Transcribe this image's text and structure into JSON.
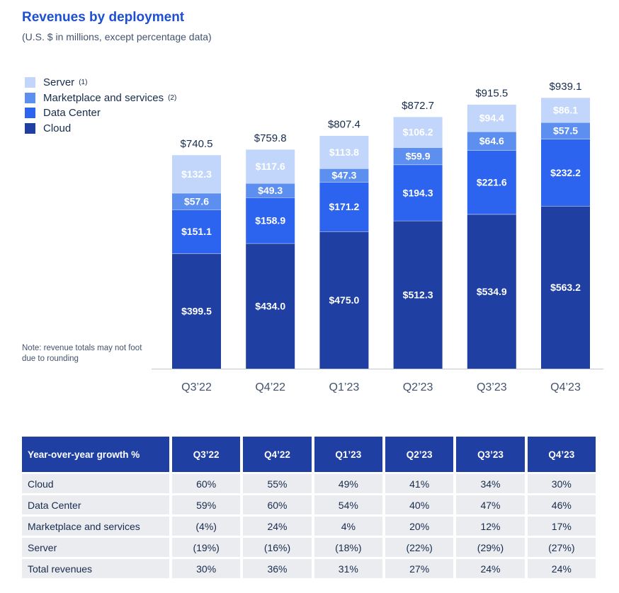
{
  "header": {
    "title": "Revenues by deployment",
    "subtitle": "(U.S. $ in millions, except percentage data)"
  },
  "legend": [
    {
      "label": "Server",
      "note": "(1)",
      "color": "#c2d6fb"
    },
    {
      "label": "Marketplace and services",
      "note": "(2)",
      "color": "#5c8ff0"
    },
    {
      "label": "Data Center",
      "note": "",
      "color": "#2c63ef"
    },
    {
      "label": "Cloud",
      "note": "",
      "color": "#1f3fa3"
    }
  ],
  "note": "Note: revenue totals may not foot due to rounding",
  "chart_data": {
    "type": "bar",
    "stacked": true,
    "categories": [
      "Q3’22",
      "Q4’22",
      "Q1’23",
      "Q2’23",
      "Q3’23",
      "Q4’23"
    ],
    "series": [
      {
        "name": "Cloud",
        "color": "#1f3fa3",
        "values": [
          399.5,
          434.0,
          475.0,
          512.3,
          534.9,
          563.2
        ],
        "labels": [
          "$399.5",
          "$434.0",
          "$475.0",
          "$512.3",
          "$534.9",
          "$563.2"
        ]
      },
      {
        "name": "Data Center",
        "color": "#2c63ef",
        "values": [
          151.1,
          158.9,
          171.2,
          194.3,
          221.6,
          232.2
        ],
        "labels": [
          "$151.1",
          "$158.9",
          "$171.2",
          "$194.3",
          "$221.6",
          "$232.2"
        ]
      },
      {
        "name": "Marketplace and services",
        "color": "#5c8ff0",
        "values": [
          57.6,
          49.3,
          47.3,
          59.9,
          64.6,
          57.5
        ],
        "labels": [
          "$57.6",
          "$49.3",
          "$47.3",
          "$59.9",
          "$64.6",
          "$57.5"
        ]
      },
      {
        "name": "Server",
        "color": "#c2d6fb",
        "values": [
          132.3,
          117.6,
          113.8,
          106.2,
          94.4,
          86.1
        ],
        "labels": [
          "$132.3",
          "$117.6",
          "$113.8",
          "$106.2",
          "$94.4",
          "$86.1"
        ]
      }
    ],
    "totals": [
      740.5,
      759.8,
      807.4,
      872.7,
      915.5,
      939.1
    ],
    "total_labels": [
      "$740.5",
      "$759.8",
      "$807.4",
      "$872.7",
      "$915.5",
      "$939.1"
    ],
    "ylim": [
      0,
      1000
    ],
    "grid": false,
    "legend_position": "top-left"
  },
  "table": {
    "header": [
      "Year-over-year growth %",
      "Q3’22",
      "Q4’22",
      "Q1’23",
      "Q2’23",
      "Q3’23",
      "Q4’23"
    ],
    "rows": [
      [
        "Cloud",
        "60%",
        "55%",
        "49%",
        "41%",
        "34%",
        "30%"
      ],
      [
        "Data Center",
        "59%",
        "60%",
        "54%",
        "40%",
        "47%",
        "46%"
      ],
      [
        "Marketplace and services",
        "(4%)",
        "24%",
        "4%",
        "20%",
        "12%",
        "17%"
      ],
      [
        "Server",
        "(19%)",
        "(16%)",
        "(18%)",
        "(22%)",
        "(29%)",
        "(27%)"
      ],
      [
        "Total revenues",
        "30%",
        "36%",
        "31%",
        "27%",
        "24%",
        "24%"
      ]
    ]
  }
}
